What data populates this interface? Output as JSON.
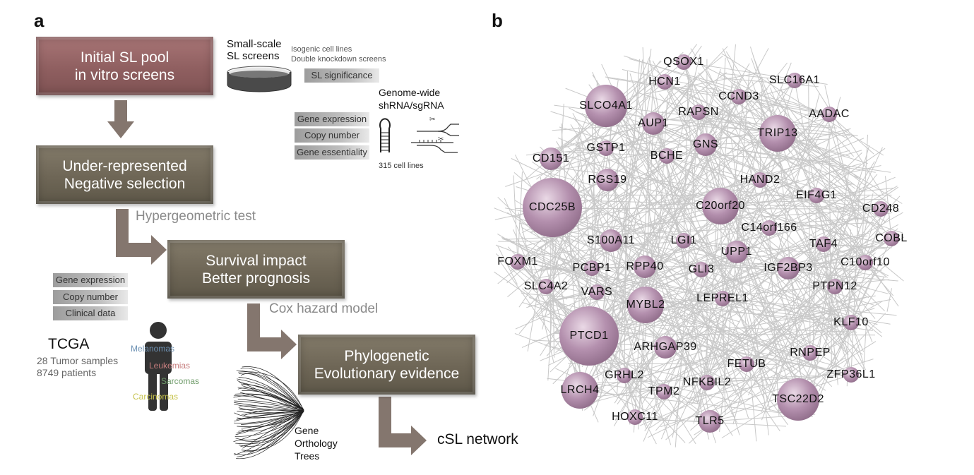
{
  "panel_a": {
    "letter": "a",
    "box1": "Initial SL pool\nin vitro screens",
    "box2": "Under-represented\nNegative selection",
    "box3": "Survival impact\nBetter prognosis",
    "box4": "Phylogenetic\nEvolutionary evidence",
    "small_scale": "Small-scale\nSL screens",
    "isogenic": "Isogenic cell lines\nDouble knockdown screens",
    "sl_significance": "SL significance",
    "genome_wide": "Genome-wide\nshRNA/sgRNA",
    "cell_tags": [
      "Gene expression",
      "Copy number",
      "Gene essentiality"
    ],
    "cell_lines": "315 cell lines",
    "hypergeometric": "Hypergeometric test",
    "tcga_tags": [
      "Gene expression",
      "Copy number",
      "Clinical data"
    ],
    "tcga": "TCGA",
    "tcga_samples": "28 Tumor samples",
    "tcga_patients": "8749 patients",
    "cancer_types": [
      {
        "label": "Melanomas",
        "color": "#6f93b5"
      },
      {
        "label": "Leukemias",
        "color": "#c77e7e"
      },
      {
        "label": "Sarcomas",
        "color": "#6f9c6a"
      },
      {
        "label": "Carcinomas",
        "color": "#c6c24a"
      }
    ],
    "cox": "Cox hazard model",
    "trees": "Gene\nOrthology\nTrees",
    "csl": "cSL network",
    "colors": {
      "arrow": "#84766e",
      "pink_box": "#8f5f60",
      "brown_box": "#6e6656"
    }
  },
  "panel_b": {
    "letter": "b",
    "node_color": "#b490ae",
    "edge_color": "#c8c8c8",
    "nodes": [
      {
        "label": "QSOX1",
        "size": 1
      },
      {
        "label": "HCN1",
        "size": 1
      },
      {
        "label": "SLC16A1",
        "size": 1
      },
      {
        "label": "CCND3",
        "size": 1
      },
      {
        "label": "SLCO4A1",
        "size": 4
      },
      {
        "label": "RAPSN",
        "size": 1
      },
      {
        "label": "AADAC",
        "size": 1
      },
      {
        "label": "AUP1",
        "size": 2
      },
      {
        "label": "TRIP13",
        "size": 3
      },
      {
        "label": "GNS",
        "size": 2
      },
      {
        "label": "GSTP1",
        "size": 1
      },
      {
        "label": "BCHE",
        "size": 1
      },
      {
        "label": "CD151",
        "size": 2
      },
      {
        "label": "RGS19",
        "size": 2
      },
      {
        "label": "HAND2",
        "size": 1
      },
      {
        "label": "EIF4G1",
        "size": 1
      },
      {
        "label": "CDC25B",
        "size": 5
      },
      {
        "label": "C20orf20",
        "size": 3
      },
      {
        "label": "CD248",
        "size": 1
      },
      {
        "label": "C14orf166",
        "size": 1
      },
      {
        "label": "S100A11",
        "size": 2
      },
      {
        "label": "LGI1",
        "size": 1
      },
      {
        "label": "TAF4",
        "size": 1
      },
      {
        "label": "COBL",
        "size": 1
      },
      {
        "label": "UPP1",
        "size": 2
      },
      {
        "label": "FOXM1",
        "size": 1
      },
      {
        "label": "PCBP1",
        "size": 1
      },
      {
        "label": "RPP40",
        "size": 2
      },
      {
        "label": "GLI3",
        "size": 1
      },
      {
        "label": "IGF2BP3",
        "size": 2
      },
      {
        "label": "C10orf10",
        "size": 1
      },
      {
        "label": "SLC4A2",
        "size": 1
      },
      {
        "label": "VARS",
        "size": 1
      },
      {
        "label": "PTPN12",
        "size": 1
      },
      {
        "label": "MYBL2",
        "size": 3
      },
      {
        "label": "LEPREL1",
        "size": 1
      },
      {
        "label": "KLF10",
        "size": 1
      },
      {
        "label": "PTCD1",
        "size": 5
      },
      {
        "label": "ARHGAP39",
        "size": 2
      },
      {
        "label": "RNPEP",
        "size": 1
      },
      {
        "label": "GRHL2",
        "size": 1
      },
      {
        "label": "FETUB",
        "size": 1
      },
      {
        "label": "ZFP36L1",
        "size": 1
      },
      {
        "label": "LRCH4",
        "size": 3
      },
      {
        "label": "NFKBIL2",
        "size": 1
      },
      {
        "label": "TPM2",
        "size": 1
      },
      {
        "label": "TSC22D2",
        "size": 4
      },
      {
        "label": "HOXC11",
        "size": 1
      },
      {
        "label": "TLR5",
        "size": 2
      }
    ]
  }
}
